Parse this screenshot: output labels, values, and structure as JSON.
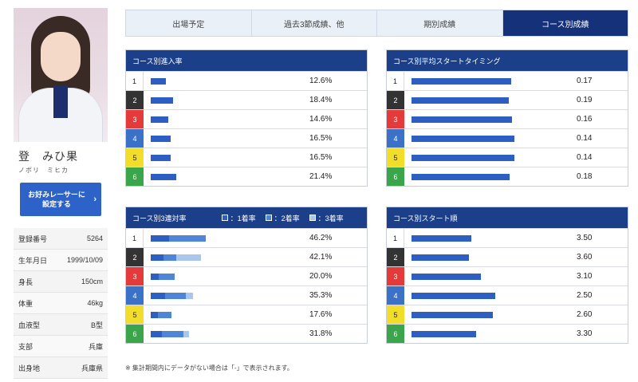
{
  "racer": {
    "name": "登　みひ果",
    "kana": "ノボリ　ミヒカ",
    "fav_button": [
      "お好みレーサーに",
      "設定する"
    ],
    "profile": [
      {
        "label": "登録番号",
        "value": "5264"
      },
      {
        "label": "生年月日",
        "value": "1999/10/09"
      },
      {
        "label": "身長",
        "value": "150cm"
      },
      {
        "label": "体重",
        "value": "46kg"
      },
      {
        "label": "血液型",
        "value": "B型"
      },
      {
        "label": "支部",
        "value": "兵庫"
      },
      {
        "label": "出身地",
        "value": "兵庫県"
      }
    ]
  },
  "tabs": [
    {
      "label": "出場予定",
      "active": false
    },
    {
      "label": "過去3節成績、他",
      "active": false
    },
    {
      "label": "期別成績",
      "active": false
    },
    {
      "label": "コース別成績",
      "active": true
    }
  ],
  "panels": {
    "entry_rate": {
      "title": "コース別進入率",
      "rows": [
        {
          "course": "1",
          "pct": 12.6,
          "value": "12.6%"
        },
        {
          "course": "2",
          "pct": 18.4,
          "value": "18.4%"
        },
        {
          "course": "3",
          "pct": 14.6,
          "value": "14.6%"
        },
        {
          "course": "4",
          "pct": 16.5,
          "value": "16.5%"
        },
        {
          "course": "5",
          "pct": 16.5,
          "value": "16.5%"
        },
        {
          "course": "6",
          "pct": 21.4,
          "value": "21.4%"
        }
      ]
    },
    "avg_start": {
      "title": "コース別平均スタートタイミング",
      "rows": [
        {
          "course": "1",
          "value": "0.17",
          "bar": 0.83
        },
        {
          "course": "2",
          "value": "0.19",
          "bar": 0.81
        },
        {
          "course": "3",
          "value": "0.16",
          "bar": 0.84
        },
        {
          "course": "4",
          "value": "0.14",
          "bar": 0.86
        },
        {
          "course": "5",
          "value": "0.14",
          "bar": 0.86
        },
        {
          "course": "6",
          "value": "0.18",
          "bar": 0.82
        }
      ]
    },
    "top3_rate": {
      "title": "コース別3連対率",
      "legend": [
        "：1着率",
        "：2着率",
        "：3着率"
      ],
      "rows": [
        {
          "course": "1",
          "value": "46.2%",
          "first": 15.5,
          "second": 30.7,
          "third": 0
        },
        {
          "course": "2",
          "value": "42.1%",
          "first": 10.5,
          "second": 10.5,
          "third": 21.1
        },
        {
          "course": "3",
          "value": "20.0%",
          "first": 6.7,
          "second": 13.3,
          "third": 0
        },
        {
          "course": "4",
          "value": "35.3%",
          "first": 11.8,
          "second": 17.6,
          "third": 5.9
        },
        {
          "course": "5",
          "value": "17.6%",
          "first": 5.9,
          "second": 11.7,
          "third": 0
        },
        {
          "course": "6",
          "value": "31.8%",
          "first": 9.1,
          "second": 18.2,
          "third": 4.5
        }
      ]
    },
    "start_order": {
      "title": "コース別スタート順",
      "rows": [
        {
          "course": "1",
          "value": "3.50",
          "bar": 0.5
        },
        {
          "course": "2",
          "value": "3.60",
          "bar": 0.48
        },
        {
          "course": "3",
          "value": "3.10",
          "bar": 0.58
        },
        {
          "course": "4",
          "value": "2.50",
          "bar": 0.7
        },
        {
          "course": "5",
          "value": "2.60",
          "bar": 0.68
        },
        {
          "course": "6",
          "value": "3.30",
          "bar": 0.54
        }
      ]
    }
  },
  "note": "※ 集計期間内にデータがない場合は「-」で表示されます。"
}
